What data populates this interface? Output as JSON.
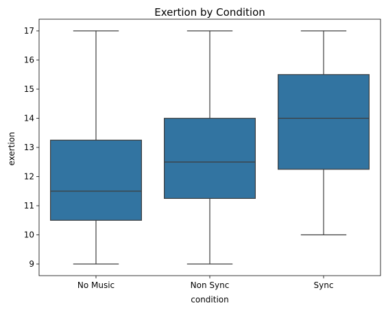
{
  "chart_data": {
    "type": "box",
    "title": "Exertion by Condition",
    "xlabel": "condition",
    "ylabel": "exertion",
    "categories": [
      "No Music",
      "Non Sync",
      "Sync"
    ],
    "boxes": [
      {
        "category": "No Music",
        "whisker_low": 9,
        "q1": 10.5,
        "median": 11.5,
        "q3": 13.25,
        "whisker_high": 17
      },
      {
        "category": "Non Sync",
        "whisker_low": 9,
        "q1": 11.25,
        "median": 12.5,
        "q3": 14,
        "whisker_high": 17
      },
      {
        "category": "Sync",
        "whisker_low": 10,
        "q1": 12.25,
        "median": 14,
        "q3": 15.5,
        "whisker_high": 17
      }
    ],
    "ylim": [
      8.6,
      17.4
    ],
    "yticks": [
      9,
      10,
      11,
      12,
      13,
      14,
      15,
      16,
      17
    ],
    "grid": false,
    "box_color": "#3274a1",
    "line_color": "#3d3d3d"
  }
}
